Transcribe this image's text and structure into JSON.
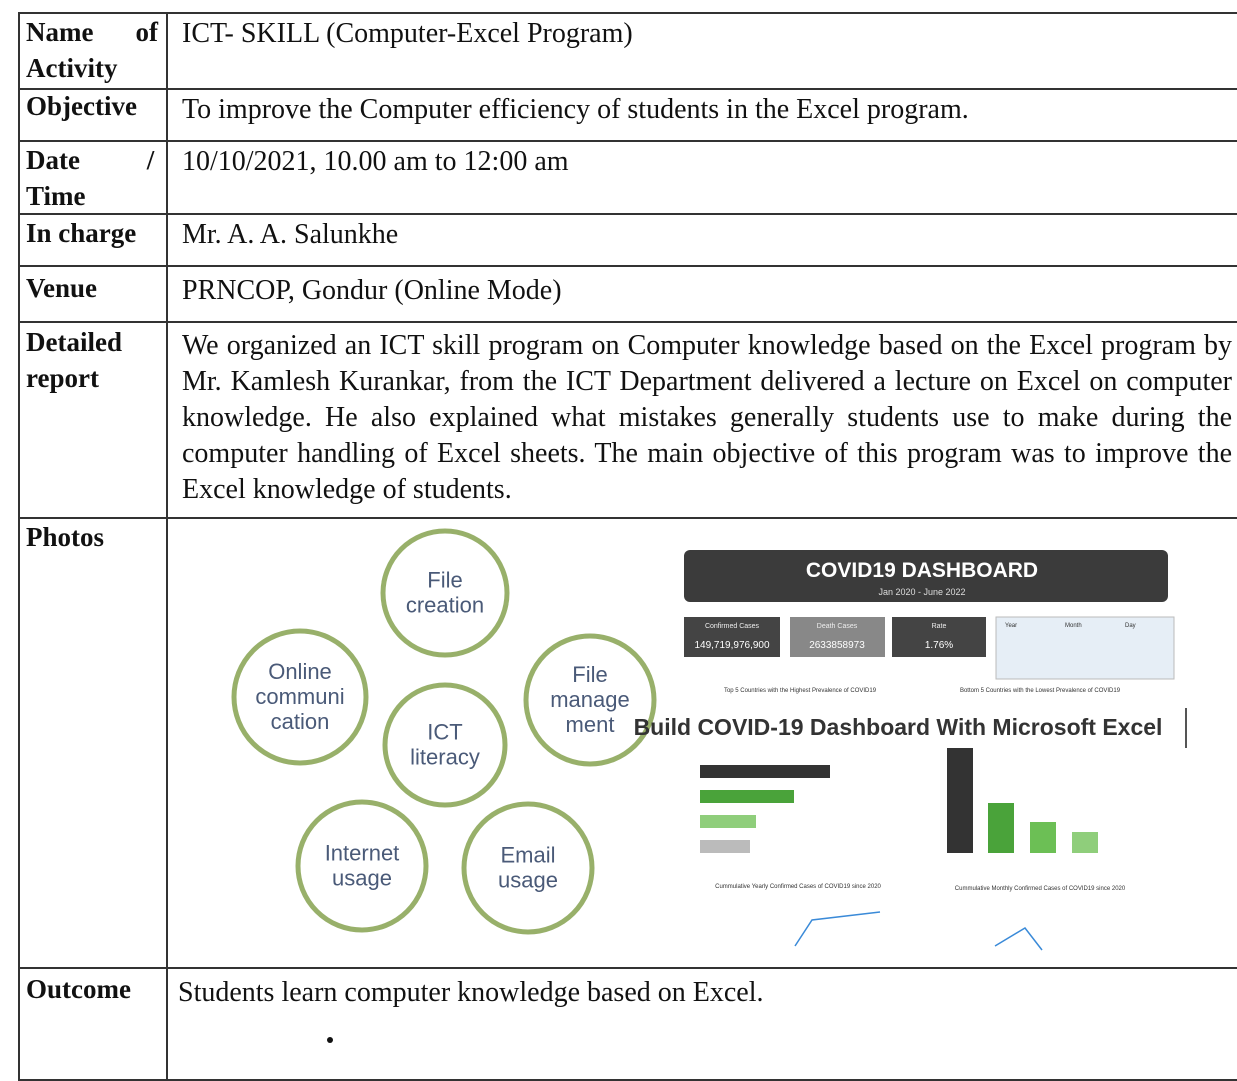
{
  "table": {
    "rows": [
      {
        "label": "Name of Activity",
        "value": "ICT- SKILL (Computer-Excel Program)"
      },
      {
        "label": "Objective",
        "value": "To improve the Computer efficiency of students in the Excel program."
      },
      {
        "label": "Date / Time",
        "value": "10/10/2021, 10.00 am to 12:00 am"
      },
      {
        "label": "In charge",
        "value": "Mr. A. A. Salunkhe"
      },
      {
        "label": "Venue",
        "value": "PRNCOP, Gondur (Online Mode)"
      },
      {
        "label": "Detailed report",
        "value": "We organized an ICT skill program on Computer knowledge based on the Excel program by Mr. Kamlesh Kurankar, from the ICT Department delivered a lecture on Excel on computer knowledge. He also explained what mistakes generally students use to make during the computer handling of Excel sheets. The main objective of this program was to improve the Excel knowledge of students."
      },
      {
        "label": "Photos"
      },
      {
        "label": "Outcome",
        "value": "Students learn computer knowledge based on Excel."
      }
    ]
  },
  "photos": {
    "diagram": {
      "nodes": [
        {
          "label": "File creation"
        },
        {
          "label": "Online communi cation"
        },
        {
          "label": "ICT literacy"
        },
        {
          "label": "File manage ment"
        },
        {
          "label": "Internet usage"
        },
        {
          "label": "Email usage"
        }
      ]
    },
    "dashboard": {
      "title": "COVID19 DASHBOARD",
      "subtitle": "Jan 2020 - June 2022",
      "kpis": [
        {
          "label": "Confirmed Cases",
          "value": "149,719,976,900"
        },
        {
          "label": "Death Cases",
          "value": "2633858973"
        },
        {
          "label": "Rate",
          "value": "1.76%"
        }
      ],
      "filters": [
        "Year",
        "Month",
        "Day"
      ],
      "chart_titles": [
        "Top 5 Countries with the Highest Prevalence of COVID19",
        "Bottom 5 Countries with the Lowest Prevalence of COVID19",
        "Cummulative Yearly Confirmed Cases of COVID19 since 2020",
        "Cummulative Monthly Confirmed Cases of COVID19 since 2020"
      ],
      "caption": "Build COVID-19 Dashboard With Microsoft Excel"
    }
  }
}
